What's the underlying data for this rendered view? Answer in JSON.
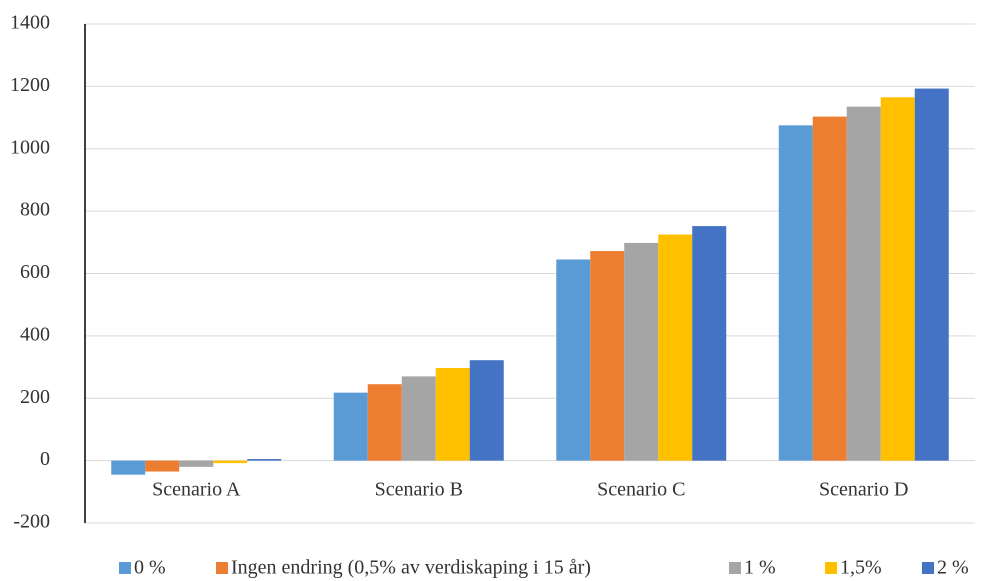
{
  "chart_data": {
    "type": "bar",
    "categories": [
      "Scenario A",
      "Scenario B",
      "Scenario C",
      "Scenario D"
    ],
    "series": [
      {
        "name": "0 %",
        "color": "#5b9bd5",
        "values": [
          -45,
          218,
          645,
          1075
        ]
      },
      {
        "name": "Ingen endring (0,5% av verdiskaping i 15 år)",
        "color": "#ed7d31",
        "values": [
          -35,
          245,
          672,
          1103
        ]
      },
      {
        "name": "1 %",
        "color": "#a5a5a5",
        "values": [
          -20,
          270,
          698,
          1135
        ]
      },
      {
        "name": "1,5%",
        "color": "#ffc000",
        "values": [
          -8,
          297,
          725,
          1165
        ]
      },
      {
        "name": "2 %",
        "color": "#4472c4",
        "values": [
          5,
          322,
          752,
          1193
        ]
      }
    ],
    "ylim": [
      -200,
      1400
    ],
    "yticks": [
      -200,
      0,
      200,
      400,
      600,
      800,
      1000,
      1200,
      1400
    ],
    "grid": true,
    "legend": "bottom"
  }
}
